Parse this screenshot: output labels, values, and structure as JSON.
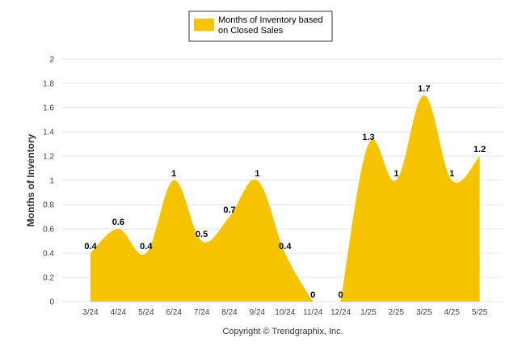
{
  "chart_data": {
    "type": "area",
    "categories": [
      "3/24",
      "4/24",
      "5/24",
      "6/24",
      "7/24",
      "8/24",
      "9/24",
      "10/24",
      "11/24",
      "12/24",
      "1/25",
      "2/25",
      "3/25",
      "4/25",
      "5/25"
    ],
    "series": [
      {
        "name": "Months of Inventory based on Closed Sales",
        "values": [
          0.4,
          0.6,
          0.4,
          1,
          0.5,
          0.7,
          1,
          0.4,
          0,
          0,
          1.3,
          1,
          1.7,
          1,
          1.2
        ],
        "labels": [
          "0.4",
          "0.6",
          "0.4",
          "1",
          "0.5",
          "0.7",
          "1",
          "0.4",
          "0",
          "0",
          "1.3",
          "1",
          "1.7",
          "1",
          "1.2"
        ],
        "color": "#f5c300"
      }
    ],
    "ylabel": "Months of Inventory",
    "xlabel": "",
    "ylim": [
      0,
      2
    ],
    "yticks": [
      "0",
      "0.2",
      "0.4",
      "0.6",
      "0.8",
      "1",
      "1.2",
      "1.4",
      "1.6",
      "1.8",
      "2"
    ],
    "grid": true,
    "legend_position": "top-center"
  },
  "legend": {
    "line1": "Months of Inventory based",
    "line2": "on Closed Sales"
  },
  "footer": {
    "copyright": "Copyright © Trendgraphix, Inc."
  }
}
